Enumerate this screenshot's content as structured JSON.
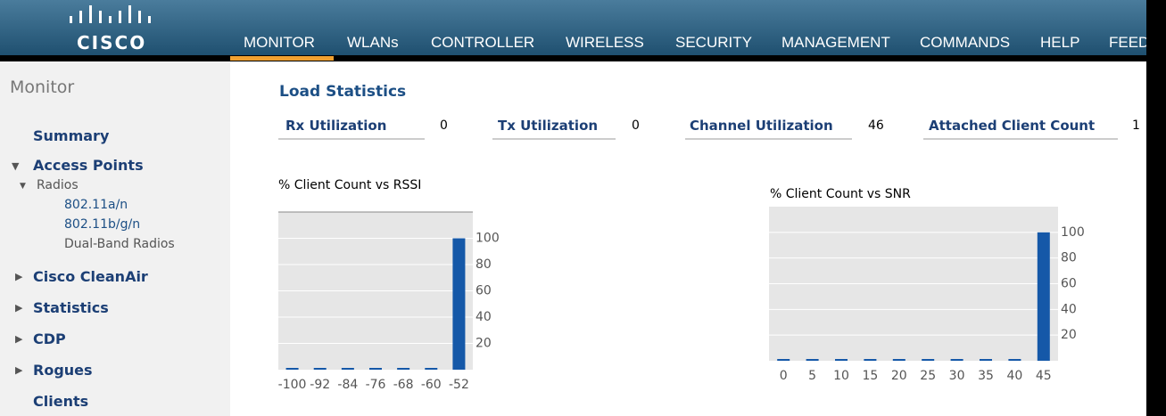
{
  "header": {
    "logo": "CISCO",
    "nav": [
      "MONITOR",
      "WLANs",
      "CONTROLLER",
      "WIRELESS",
      "SECURITY",
      "MANAGEMENT",
      "COMMANDS",
      "HELP",
      "FEED"
    ]
  },
  "sidebar": {
    "title": "Monitor",
    "sections": [
      "Summary",
      "Access Points",
      "Cisco CleanAir",
      "Statistics",
      "CDP",
      "Rogues",
      "Clients"
    ],
    "radios": "Radios",
    "radio_items": [
      "802.11a/n",
      "802.11b/g/n",
      "Dual-Band Radios"
    ]
  },
  "load_statistics": {
    "title": "Load Statistics",
    "fields": [
      {
        "label": "Rx Utilization",
        "value": 0
      },
      {
        "label": "Tx Utilization",
        "value": 0
      },
      {
        "label": "Channel Utilization",
        "value": 46
      },
      {
        "label": "Attached Client Count",
        "value": 1
      }
    ]
  },
  "chart_data": [
    {
      "type": "bar",
      "title": "% Client Count vs RSSI",
      "categories": [
        "-100",
        "-92",
        "-84",
        "-76",
        "-68",
        "-60",
        "-52"
      ],
      "values": [
        0,
        0,
        0,
        0,
        0,
        0,
        100
      ],
      "color": "#1558a8",
      "ylim": [
        0,
        120
      ],
      "yticks": [
        20,
        40,
        60,
        80,
        100
      ],
      "grid": true
    },
    {
      "type": "bar",
      "title": "% Client Count vs SNR",
      "categories": [
        "0",
        "5",
        "10",
        "15",
        "20",
        "25",
        "30",
        "35",
        "40",
        "45"
      ],
      "values": [
        0,
        0,
        0,
        0,
        0,
        0,
        0,
        0,
        0,
        100
      ],
      "color": "#1558a8",
      "ylim": [
        0,
        120
      ],
      "yticks": [
        20,
        40,
        60,
        80,
        100
      ],
      "grid": true
    }
  ]
}
